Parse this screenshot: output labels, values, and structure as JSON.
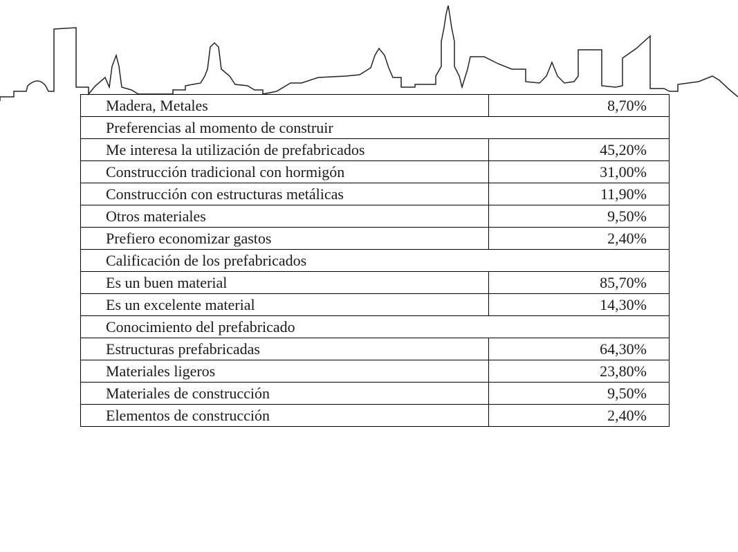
{
  "table": {
    "rows": [
      {
        "label": "Madera, Metales",
        "value": "8,70%"
      },
      {
        "section": "Preferencias al momento de construir"
      },
      {
        "label": "Me interesa la utilización de prefabricados",
        "value": "45,20%"
      },
      {
        "label": "Construcción tradicional con hormigón",
        "value": "31,00%"
      },
      {
        "label": "Construcción con estructuras metálicas",
        "value": "11,90%"
      },
      {
        "label": "Otros materiales",
        "value": "9,50%"
      },
      {
        "label": "Prefiero economizar gastos",
        "value": "2,40%"
      },
      {
        "section": "Calificación de los prefabricados"
      },
      {
        "label": "Es un buen material",
        "value": "85,70%"
      },
      {
        "label": "Es un excelente material",
        "value": "14,30%"
      },
      {
        "section": "Conocimiento del prefabricado"
      },
      {
        "label": "Estructuras prefabricadas",
        "value": "64,30%"
      },
      {
        "label": "Materiales ligeros",
        "value": "23,80%"
      },
      {
        "label": "Materiales de construcción",
        "value": "9,50%"
      },
      {
        "label": "Elementos de construcción",
        "value": "2,40%"
      }
    ]
  }
}
